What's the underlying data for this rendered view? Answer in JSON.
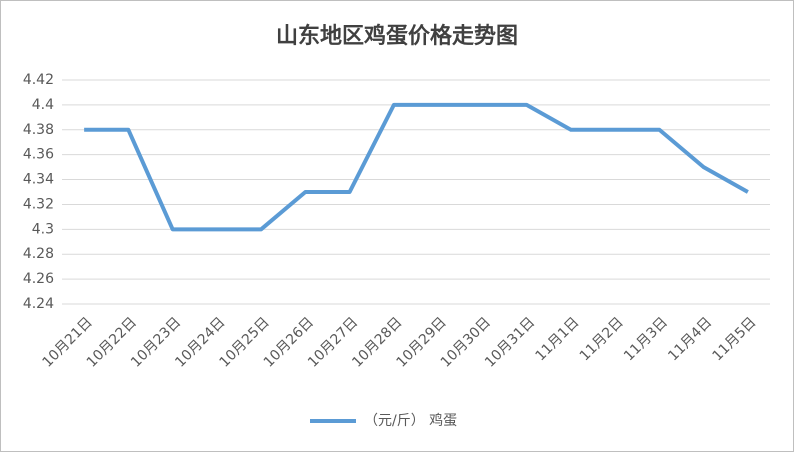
{
  "chart_data": {
    "type": "line",
    "title": "山东地区鸡蛋价格走势图",
    "categories": [
      "10月21日",
      "10月22日",
      "10月23日",
      "10月24日",
      "10月25日",
      "10月26日",
      "10月27日",
      "10月28日",
      "10月29日",
      "10月30日",
      "10月31日",
      "11月1日",
      "11月2日",
      "11月3日",
      "11月4日",
      "11月5日"
    ],
    "series": [
      {
        "name": "（元/斤） 鸡蛋",
        "color": "#5b9bd5",
        "values": [
          4.38,
          4.38,
          4.3,
          4.3,
          4.3,
          4.33,
          4.33,
          4.4,
          4.4,
          4.4,
          4.4,
          4.38,
          4.38,
          4.38,
          4.35,
          4.33
        ]
      }
    ],
    "ylim": [
      4.24,
      4.42
    ],
    "yticks": [
      4.24,
      4.26,
      4.28,
      4.3,
      4.32,
      4.34,
      4.36,
      4.38,
      4.4,
      4.42
    ],
    "grid": true,
    "legend": "bottom"
  }
}
